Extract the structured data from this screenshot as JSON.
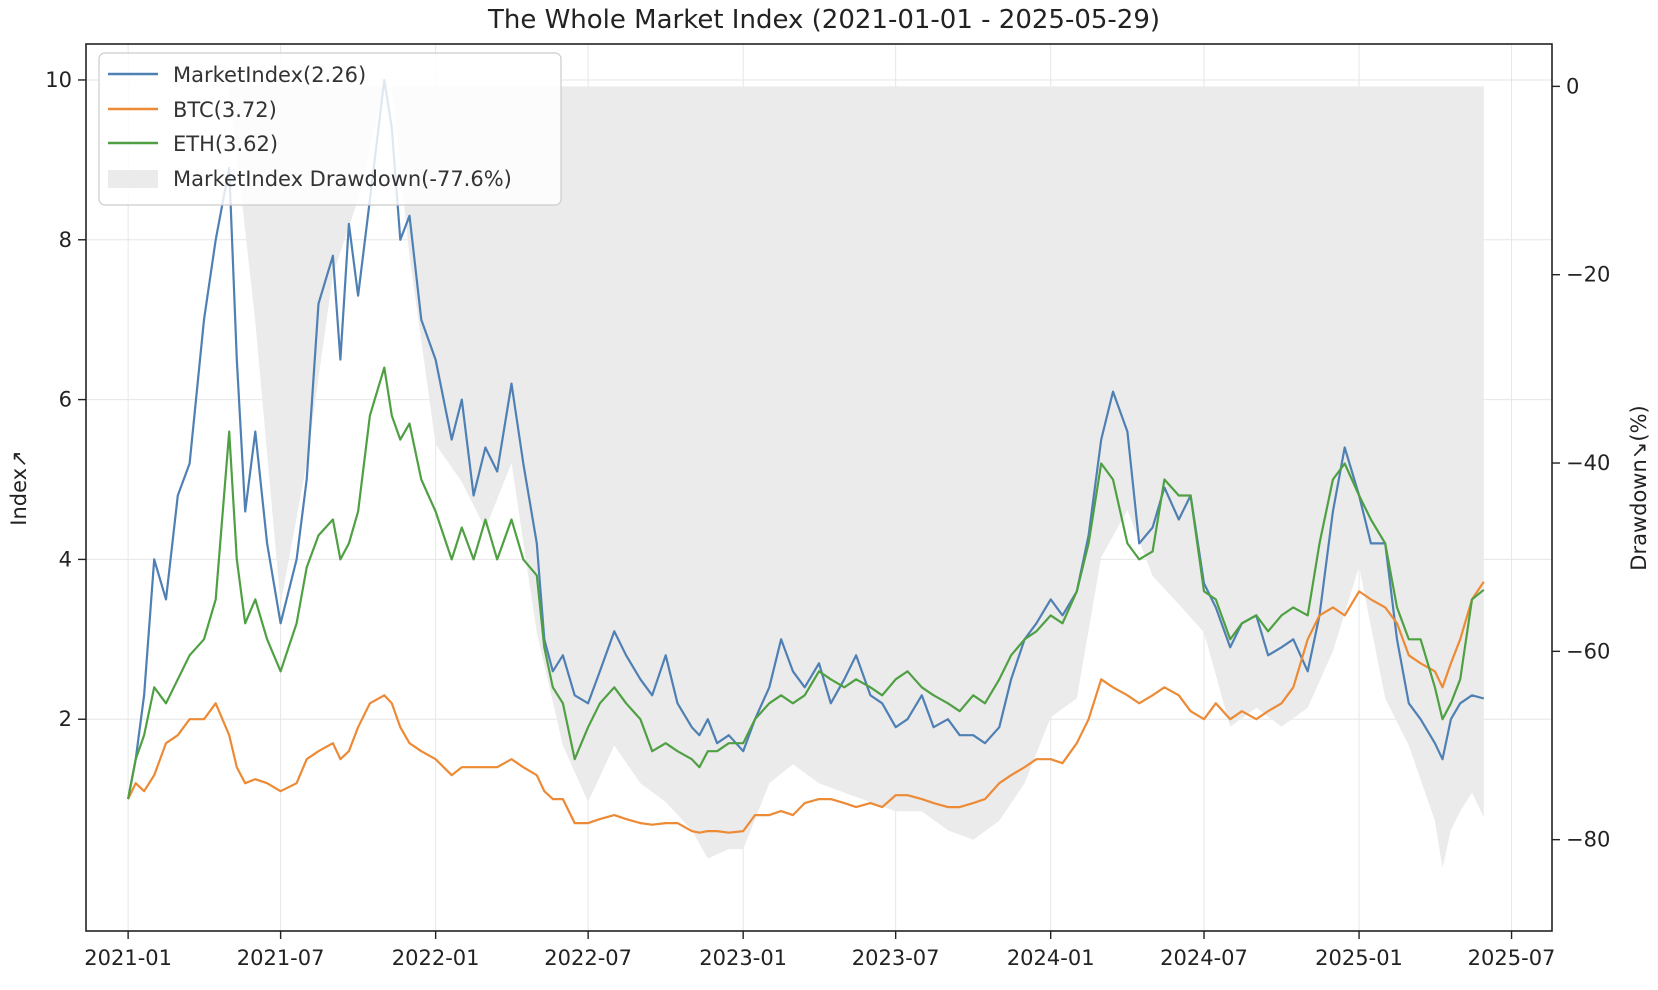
{
  "chart_data": {
    "type": "line",
    "title": "The Whole Market Index (2021-01-01 - 2025-05-29)",
    "xlabel": "",
    "ylabel": "Index↗",
    "y2label": "Drawdown↘(%)",
    "grid": true,
    "legend_position": "top-left",
    "x_ticks": [
      "2021-01",
      "2021-07",
      "2022-01",
      "2022-07",
      "2023-01",
      "2023-07",
      "2024-01",
      "2024-07",
      "2025-01",
      "2025-07"
    ],
    "x_tick_values": [
      "2021-01-01",
      "2021-07-01",
      "2022-01-01",
      "2022-07-01",
      "2023-01-01",
      "2023-07-01",
      "2024-01-01",
      "2024-07-01",
      "2025-01-01",
      "2025-07-01"
    ],
    "xlim": [
      "2020-11-12",
      "2025-08-18"
    ],
    "ylim": [
      -0.65,
      10.45
    ],
    "yticks": [
      2,
      4,
      6,
      8,
      10
    ],
    "y2lim": [
      -89.7,
      4.5
    ],
    "y2ticks": [
      0,
      -20,
      -40,
      -60,
      -80
    ],
    "y2tick_labels": [
      "0",
      "−20",
      "−40",
      "−60",
      "−80"
    ],
    "series": [
      {
        "name": "MarketIndex(2.26)",
        "color": "#4f80b4",
        "x": [
          "2021-01-01",
          "2021-01-10",
          "2021-01-20",
          "2021-02-01",
          "2021-02-15",
          "2021-03-01",
          "2021-03-15",
          "2021-04-01",
          "2021-04-15",
          "2021-05-01",
          "2021-05-10",
          "2021-05-20",
          "2021-06-01",
          "2021-06-15",
          "2021-07-01",
          "2021-07-20",
          "2021-08-01",
          "2021-08-15",
          "2021-09-01",
          "2021-09-10",
          "2021-09-20",
          "2021-10-01",
          "2021-10-15",
          "2021-11-01",
          "2021-11-10",
          "2021-11-20",
          "2021-12-01",
          "2021-12-15",
          "2022-01-01",
          "2022-01-20",
          "2022-02-01",
          "2022-02-15",
          "2022-03-01",
          "2022-03-15",
          "2022-04-01",
          "2022-04-15",
          "2022-05-01",
          "2022-05-10",
          "2022-05-20",
          "2022-06-01",
          "2022-06-15",
          "2022-07-01",
          "2022-07-15",
          "2022-08-01",
          "2022-08-15",
          "2022-09-01",
          "2022-09-15",
          "2022-10-01",
          "2022-10-15",
          "2022-11-01",
          "2022-11-10",
          "2022-11-20",
          "2022-12-01",
          "2022-12-15",
          "2023-01-01",
          "2023-01-15",
          "2023-02-01",
          "2023-02-15",
          "2023-03-01",
          "2023-03-15",
          "2023-04-01",
          "2023-04-15",
          "2023-05-01",
          "2023-05-15",
          "2023-06-01",
          "2023-06-15",
          "2023-07-01",
          "2023-07-15",
          "2023-08-01",
          "2023-08-15",
          "2023-09-01",
          "2023-09-15",
          "2023-10-01",
          "2023-10-15",
          "2023-11-01",
          "2023-11-15",
          "2023-12-01",
          "2023-12-15",
          "2024-01-01",
          "2024-01-15",
          "2024-02-01",
          "2024-02-15",
          "2024-03-01",
          "2024-03-15",
          "2024-04-01",
          "2024-04-15",
          "2024-05-01",
          "2024-05-15",
          "2024-06-01",
          "2024-06-15",
          "2024-07-01",
          "2024-07-15",
          "2024-08-01",
          "2024-08-15",
          "2024-09-01",
          "2024-09-15",
          "2024-10-01",
          "2024-10-15",
          "2024-11-01",
          "2024-11-15",
          "2024-12-01",
          "2024-12-15",
          "2025-01-01",
          "2025-01-15",
          "2025-02-01",
          "2025-02-15",
          "2025-03-01",
          "2025-03-15",
          "2025-04-01",
          "2025-04-10",
          "2025-04-20",
          "2025-05-01",
          "2025-05-15",
          "2025-05-29"
        ],
        "y": [
          1.0,
          1.5,
          2.3,
          4.0,
          3.5,
          4.8,
          5.2,
          7.0,
          8.0,
          8.9,
          6.5,
          4.6,
          5.6,
          4.2,
          3.2,
          4.0,
          5.0,
          7.2,
          7.8,
          6.5,
          8.2,
          7.3,
          8.5,
          10.0,
          9.4,
          8.0,
          8.3,
          7.0,
          6.5,
          5.5,
          6.0,
          4.8,
          5.4,
          5.1,
          6.2,
          5.2,
          4.2,
          3.0,
          2.6,
          2.8,
          2.3,
          2.2,
          2.6,
          3.1,
          2.8,
          2.5,
          2.3,
          2.8,
          2.2,
          1.9,
          1.8,
          2.0,
          1.7,
          1.8,
          1.6,
          2.0,
          2.4,
          3.0,
          2.6,
          2.4,
          2.7,
          2.2,
          2.5,
          2.8,
          2.3,
          2.2,
          1.9,
          2.0,
          2.3,
          1.9,
          2.0,
          1.8,
          1.8,
          1.7,
          1.9,
          2.5,
          3.0,
          3.2,
          3.5,
          3.3,
          3.6,
          4.3,
          5.5,
          6.1,
          5.6,
          4.2,
          4.4,
          4.9,
          4.5,
          4.8,
          3.7,
          3.4,
          2.9,
          3.2,
          3.3,
          2.8,
          2.9,
          3.0,
          2.6,
          3.3,
          4.6,
          5.4,
          4.8,
          4.2,
          4.2,
          3.0,
          2.2,
          2.0,
          1.7,
          1.5,
          2.0,
          2.2,
          2.3,
          2.26
        ]
      },
      {
        "name": "BTC(3.72)",
        "color": "#ed8a35",
        "x": [
          "2021-01-01",
          "2021-01-10",
          "2021-01-20",
          "2021-02-01",
          "2021-02-15",
          "2021-03-01",
          "2021-03-15",
          "2021-04-01",
          "2021-04-15",
          "2021-05-01",
          "2021-05-10",
          "2021-05-20",
          "2021-06-01",
          "2021-06-15",
          "2021-07-01",
          "2021-07-20",
          "2021-08-01",
          "2021-08-15",
          "2021-09-01",
          "2021-09-10",
          "2021-09-20",
          "2021-10-01",
          "2021-10-15",
          "2021-11-01",
          "2021-11-10",
          "2021-11-20",
          "2021-12-01",
          "2021-12-15",
          "2022-01-01",
          "2022-01-20",
          "2022-02-01",
          "2022-02-15",
          "2022-03-01",
          "2022-03-15",
          "2022-04-01",
          "2022-04-15",
          "2022-05-01",
          "2022-05-10",
          "2022-05-20",
          "2022-06-01",
          "2022-06-15",
          "2022-07-01",
          "2022-07-15",
          "2022-08-01",
          "2022-08-15",
          "2022-09-01",
          "2022-09-15",
          "2022-10-01",
          "2022-10-15",
          "2022-11-01",
          "2022-11-10",
          "2022-11-20",
          "2022-12-01",
          "2022-12-15",
          "2023-01-01",
          "2023-01-15",
          "2023-02-01",
          "2023-02-15",
          "2023-03-01",
          "2023-03-15",
          "2023-04-01",
          "2023-04-15",
          "2023-05-01",
          "2023-05-15",
          "2023-06-01",
          "2023-06-15",
          "2023-07-01",
          "2023-07-15",
          "2023-08-01",
          "2023-08-15",
          "2023-09-01",
          "2023-09-15",
          "2023-10-01",
          "2023-10-15",
          "2023-11-01",
          "2023-11-15",
          "2023-12-01",
          "2023-12-15",
          "2024-01-01",
          "2024-01-15",
          "2024-02-01",
          "2024-02-15",
          "2024-03-01",
          "2024-03-15",
          "2024-04-01",
          "2024-04-15",
          "2024-05-01",
          "2024-05-15",
          "2024-06-01",
          "2024-06-15",
          "2024-07-01",
          "2024-07-15",
          "2024-08-01",
          "2024-08-15",
          "2024-09-01",
          "2024-09-15",
          "2024-10-01",
          "2024-10-15",
          "2024-11-01",
          "2024-11-15",
          "2024-12-01",
          "2024-12-15",
          "2025-01-01",
          "2025-01-15",
          "2025-02-01",
          "2025-02-15",
          "2025-03-01",
          "2025-03-15",
          "2025-04-01",
          "2025-04-10",
          "2025-04-20",
          "2025-05-01",
          "2025-05-15",
          "2025-05-29"
        ],
        "y": [
          1.0,
          1.2,
          1.1,
          1.3,
          1.7,
          1.8,
          2.0,
          2.0,
          2.2,
          1.8,
          1.4,
          1.2,
          1.25,
          1.2,
          1.1,
          1.2,
          1.5,
          1.6,
          1.7,
          1.5,
          1.6,
          1.9,
          2.2,
          2.3,
          2.2,
          1.9,
          1.7,
          1.6,
          1.5,
          1.3,
          1.4,
          1.4,
          1.4,
          1.4,
          1.5,
          1.4,
          1.3,
          1.1,
          1.0,
          1.0,
          0.7,
          0.7,
          0.75,
          0.8,
          0.75,
          0.7,
          0.68,
          0.7,
          0.7,
          0.6,
          0.58,
          0.6,
          0.6,
          0.58,
          0.6,
          0.8,
          0.8,
          0.85,
          0.8,
          0.95,
          1.0,
          1.0,
          0.95,
          0.9,
          0.95,
          0.9,
          1.05,
          1.05,
          1.0,
          0.95,
          0.9,
          0.9,
          0.95,
          1.0,
          1.2,
          1.3,
          1.4,
          1.5,
          1.5,
          1.45,
          1.7,
          2.0,
          2.5,
          2.4,
          2.3,
          2.2,
          2.3,
          2.4,
          2.3,
          2.1,
          2.0,
          2.2,
          2.0,
          2.1,
          2.0,
          2.1,
          2.2,
          2.4,
          3.0,
          3.3,
          3.4,
          3.3,
          3.6,
          3.5,
          3.4,
          3.2,
          2.8,
          2.7,
          2.6,
          2.4,
          2.7,
          3.0,
          3.5,
          3.72
        ]
      },
      {
        "name": "ETH(3.62)",
        "color": "#4fa043",
        "x": [
          "2021-01-01",
          "2021-01-10",
          "2021-01-20",
          "2021-02-01",
          "2021-02-15",
          "2021-03-01",
          "2021-03-15",
          "2021-04-01",
          "2021-04-15",
          "2021-05-01",
          "2021-05-10",
          "2021-05-20",
          "2021-06-01",
          "2021-06-15",
          "2021-07-01",
          "2021-07-20",
          "2021-08-01",
          "2021-08-15",
          "2021-09-01",
          "2021-09-10",
          "2021-09-20",
          "2021-10-01",
          "2021-10-15",
          "2021-11-01",
          "2021-11-10",
          "2021-11-20",
          "2021-12-01",
          "2021-12-15",
          "2022-01-01",
          "2022-01-20",
          "2022-02-01",
          "2022-02-15",
          "2022-03-01",
          "2022-03-15",
          "2022-04-01",
          "2022-04-15",
          "2022-05-01",
          "2022-05-10",
          "2022-05-20",
          "2022-06-01",
          "2022-06-15",
          "2022-07-01",
          "2022-07-15",
          "2022-08-01",
          "2022-08-15",
          "2022-09-01",
          "2022-09-15",
          "2022-10-01",
          "2022-10-15",
          "2022-11-01",
          "2022-11-10",
          "2022-11-20",
          "2022-12-01",
          "2022-12-15",
          "2023-01-01",
          "2023-01-15",
          "2023-02-01",
          "2023-02-15",
          "2023-03-01",
          "2023-03-15",
          "2023-04-01",
          "2023-04-15",
          "2023-05-01",
          "2023-05-15",
          "2023-06-01",
          "2023-06-15",
          "2023-07-01",
          "2023-07-15",
          "2023-08-01",
          "2023-08-15",
          "2023-09-01",
          "2023-09-15",
          "2023-10-01",
          "2023-10-15",
          "2023-11-01",
          "2023-11-15",
          "2023-12-01",
          "2023-12-15",
          "2024-01-01",
          "2024-01-15",
          "2024-02-01",
          "2024-02-15",
          "2024-03-01",
          "2024-03-15",
          "2024-04-01",
          "2024-04-15",
          "2024-05-01",
          "2024-05-15",
          "2024-06-01",
          "2024-06-15",
          "2024-07-01",
          "2024-07-15",
          "2024-08-01",
          "2024-08-15",
          "2024-09-01",
          "2024-09-15",
          "2024-10-01",
          "2024-10-15",
          "2024-11-01",
          "2024-11-15",
          "2024-12-01",
          "2024-12-15",
          "2025-01-01",
          "2025-01-15",
          "2025-02-01",
          "2025-02-15",
          "2025-03-01",
          "2025-03-15",
          "2025-04-01",
          "2025-04-10",
          "2025-04-20",
          "2025-05-01",
          "2025-05-15",
          "2025-05-29"
        ],
        "y": [
          1.0,
          1.5,
          1.8,
          2.4,
          2.2,
          2.5,
          2.8,
          3.0,
          3.5,
          5.6,
          4.0,
          3.2,
          3.5,
          3.0,
          2.6,
          3.2,
          3.9,
          4.3,
          4.5,
          4.0,
          4.2,
          4.6,
          5.8,
          6.4,
          5.8,
          5.5,
          5.7,
          5.0,
          4.6,
          4.0,
          4.4,
          4.0,
          4.5,
          4.0,
          4.5,
          4.0,
          3.8,
          2.9,
          2.4,
          2.2,
          1.5,
          1.9,
          2.2,
          2.4,
          2.2,
          2.0,
          1.6,
          1.7,
          1.6,
          1.5,
          1.4,
          1.6,
          1.6,
          1.7,
          1.7,
          2.0,
          2.2,
          2.3,
          2.2,
          2.3,
          2.6,
          2.5,
          2.4,
          2.5,
          2.4,
          2.3,
          2.5,
          2.6,
          2.4,
          2.3,
          2.2,
          2.1,
          2.3,
          2.2,
          2.5,
          2.8,
          3.0,
          3.1,
          3.3,
          3.2,
          3.6,
          4.2,
          5.2,
          5.0,
          4.2,
          4.0,
          4.1,
          5.0,
          4.8,
          4.8,
          3.6,
          3.5,
          3.0,
          3.2,
          3.3,
          3.1,
          3.3,
          3.4,
          3.3,
          4.2,
          5.0,
          5.2,
          4.8,
          4.5,
          4.2,
          3.4,
          3.0,
          3.0,
          2.4,
          2.0,
          2.2,
          2.5,
          3.5,
          3.62
        ]
      },
      {
        "name": "MarketIndex Drawdown(-77.6%)",
        "color": "#ebebeb",
        "kind": "area",
        "axis": "y2",
        "x": [
          "2021-01-01",
          "2021-02-01",
          "2021-03-01",
          "2021-04-01",
          "2021-04-15",
          "2021-05-01",
          "2021-06-01",
          "2021-07-01",
          "2021-08-01",
          "2021-09-01",
          "2021-10-01",
          "2021-11-01",
          "2021-11-10",
          "2021-12-01",
          "2022-01-01",
          "2022-02-01",
          "2022-03-01",
          "2022-04-01",
          "2022-05-01",
          "2022-06-01",
          "2022-07-01",
          "2022-08-01",
          "2022-09-01",
          "2022-10-01",
          "2022-11-01",
          "2022-11-20",
          "2022-12-15",
          "2023-01-01",
          "2023-02-01",
          "2023-03-01",
          "2023-04-01",
          "2023-05-01",
          "2023-06-01",
          "2023-07-01",
          "2023-08-01",
          "2023-09-01",
          "2023-10-01",
          "2023-11-01",
          "2023-12-01",
          "2024-01-01",
          "2024-02-01",
          "2024-03-01",
          "2024-04-01",
          "2024-05-01",
          "2024-06-01",
          "2024-07-01",
          "2024-08-01",
          "2024-09-01",
          "2024-10-01",
          "2024-11-01",
          "2024-12-01",
          "2025-01-01",
          "2025-02-01",
          "2025-03-01",
          "2025-04-01",
          "2025-04-10",
          "2025-04-20",
          "2025-05-01",
          "2025-05-15",
          "2025-05-29"
        ],
        "y": [
          0,
          0,
          0,
          0,
          0,
          0,
          -25,
          -55,
          -40,
          -20,
          -12,
          0,
          0,
          -18,
          -38,
          -42,
          -47,
          -40,
          -58,
          -70,
          -76,
          -70,
          -74,
          -76,
          -79,
          -82,
          -81,
          -81,
          -74,
          -72,
          -74,
          -75,
          -76,
          -77,
          -77,
          -79,
          -80,
          -78,
          -74,
          -67,
          -65,
          -50,
          -45,
          -52,
          -55,
          -58,
          -68,
          -66,
          -68,
          -66,
          -60,
          -51,
          -65,
          -70,
          -78,
          -83,
          -79,
          -77,
          -75,
          -77.6
        ]
      }
    ]
  }
}
